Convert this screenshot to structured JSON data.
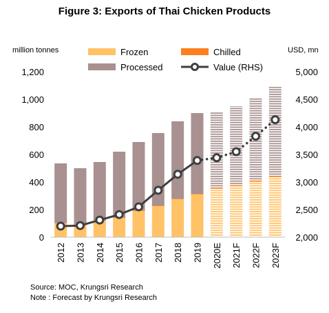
{
  "title": "Figure 3: Exports of Thai Chicken Products",
  "source": "Source: MOC, Krungsri Research",
  "note": "Note : Forecast by Krungsri Research",
  "chart_data": {
    "type": "bar",
    "title": "Figure 3: Exports of Thai Chicken Products",
    "ylabel": "million tonnes",
    "y2label": "USD, mn",
    "ylim": [
      0,
      1200
    ],
    "yticks": [
      "0",
      "200",
      "400",
      "600",
      "800",
      "1,000",
      "1,200"
    ],
    "y2lim": [
      2000,
      5000
    ],
    "y2ticks": [
      "2,000",
      "2,500",
      "3,000",
      "3,500",
      "4,000",
      "4,500",
      "5,000"
    ],
    "grid": false,
    "stacked": true,
    "categories": [
      "2012",
      "2013",
      "2014",
      "2015",
      "2016",
      "2017",
      "2018",
      "2019",
      "2020E",
      "2021F",
      "2022F",
      "2023F"
    ],
    "forecast_from": "2020E",
    "series": [
      {
        "name": "Frozen",
        "color": "#FFC266",
        "values": [
          100,
          90,
          120,
          140,
          190,
          225,
          275,
          310,
          345,
          370,
          400,
          435
        ]
      },
      {
        "name": "Chilled",
        "color": "#FF7F1F",
        "values": [
          2,
          2,
          2,
          3,
          3,
          3,
          4,
          4,
          20,
          15,
          12,
          12
        ]
      },
      {
        "name": "Processed",
        "color": "#A89190",
        "values": [
          433,
          408,
          423,
          477,
          497,
          527,
          561,
          586,
          545,
          565,
          598,
          643
        ]
      },
      {
        "name": "Value (RHS)",
        "type": "line",
        "axis": "right",
        "color": "#3F3F3F",
        "values": [
          2200,
          2210,
          2310,
          2410,
          2550,
          2850,
          3140,
          3390,
          3440,
          3550,
          3830,
          4130
        ]
      }
    ],
    "legend": {
      "placement": "top",
      "entries": [
        "Frozen",
        "Chilled",
        "Processed",
        "Value (RHS)"
      ]
    }
  }
}
